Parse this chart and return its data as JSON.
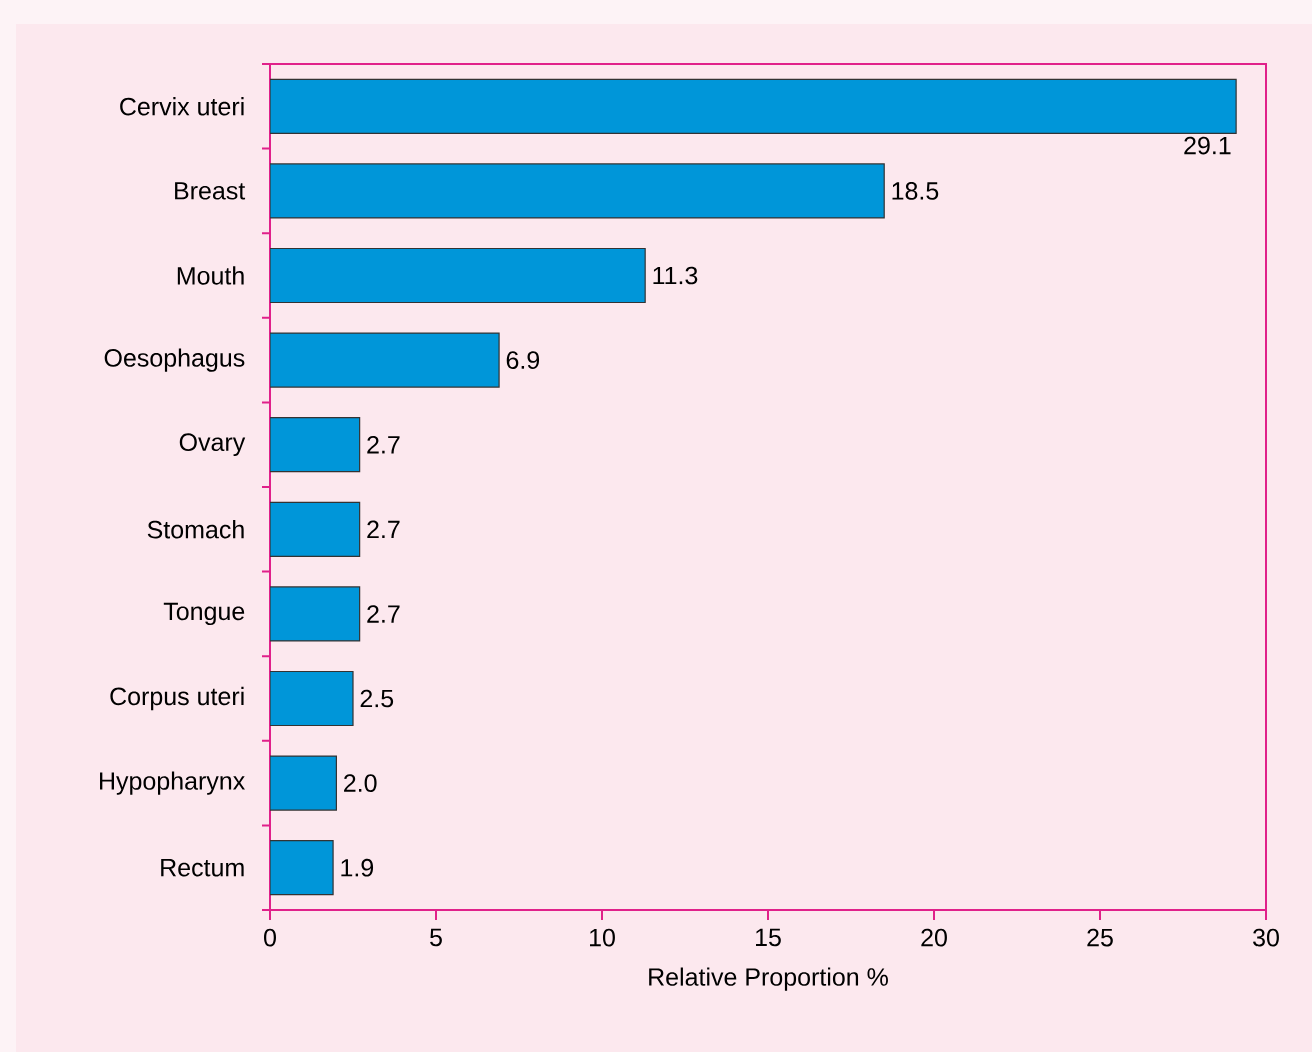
{
  "chart_data": {
    "type": "bar",
    "orientation": "horizontal",
    "xlabel": "Relative Proportion %",
    "categories": [
      "Cervix uteri",
      "Breast",
      "Mouth",
      "Oesophagus",
      "Ovary",
      "Stomach",
      "Tongue",
      "Corpus uteri",
      "Hypopharynx",
      "Rectum"
    ],
    "values": [
      29.1,
      18.5,
      11.3,
      6.9,
      2.7,
      2.7,
      2.7,
      2.5,
      2.0,
      1.9
    ],
    "color": "#0096d9",
    "xlim": [
      0,
      30
    ],
    "xticks": [
      0,
      5,
      10,
      15,
      20,
      25,
      30
    ],
    "value_labels": [
      "29.1",
      "18.5",
      "11.3",
      "6.9",
      "2.7",
      "2.7",
      "2.7",
      "2.5",
      "2.0",
      "1.9"
    ]
  }
}
